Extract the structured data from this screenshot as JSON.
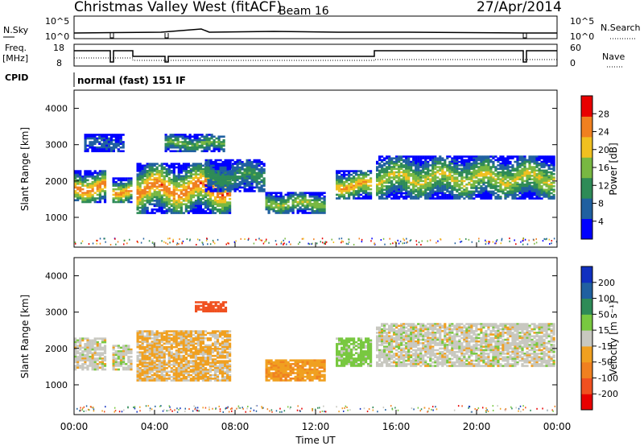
{
  "header": {
    "title": "Christmas Valley West (fitACF)",
    "beam": "Beam 16",
    "date": "27/Apr/2014",
    "cpid_label": "CPID",
    "cpid_value": "normal (fast) 151 IF"
  },
  "strips": {
    "nsky": {
      "label": "N.Sky",
      "right_label": "N.Search",
      "ticks": [
        "10^5",
        "10^0"
      ]
    },
    "freq": {
      "label_line1": "Freq.",
      "label_line2": "[MHz]",
      "left_ticks": [
        "18",
        "8"
      ],
      "right_label": "Nave",
      "right_ticks": [
        "60",
        "0"
      ]
    }
  },
  "chart_data": [
    {
      "type": "heatmap",
      "title": "",
      "ylabel": "Slant Range [km]",
      "yticks": [
        "4000",
        "3000",
        "2000",
        "1000"
      ],
      "ylim": [
        180,
        4500
      ],
      "xlim_hours": [
        0,
        24
      ],
      "colorbar": {
        "label": "Power [dB]",
        "ticks": [
          "28",
          "24",
          "20",
          "16",
          "12",
          "8",
          "4"
        ],
        "colors": [
          "#0000ff",
          "#2060a0",
          "#2e8b57",
          "#78b842",
          "#f0c020",
          "#f08020",
          "#e80000"
        ]
      },
      "echo_regions": [
        {
          "x": [
            0.0,
            1.6
          ],
          "y": [
            1400,
            2300
          ],
          "peak": 0.9
        },
        {
          "x": [
            1.9,
            2.9
          ],
          "y": [
            1400,
            2100
          ],
          "peak": 0.85
        },
        {
          "x": [
            3.1,
            7.8
          ],
          "y": [
            1100,
            2500
          ],
          "peak": 0.9
        },
        {
          "x": [
            0.5,
            2.5
          ],
          "y": [
            2800,
            3300
          ],
          "peak": 0.2
        },
        {
          "x": [
            4.5,
            7.5
          ],
          "y": [
            2800,
            3300
          ],
          "peak": 0.5
        },
        {
          "x": [
            6.5,
            9.5
          ],
          "y": [
            1700,
            2600
          ],
          "peak": 0.4
        },
        {
          "x": [
            9.5,
            12.5
          ],
          "y": [
            1100,
            1700
          ],
          "peak": 0.6
        },
        {
          "x": [
            13.0,
            14.8
          ],
          "y": [
            1500,
            2300
          ],
          "peak": 0.8
        },
        {
          "x": [
            15.0,
            23.9
          ],
          "y": [
            1500,
            2700
          ],
          "peak": 0.65
        }
      ]
    },
    {
      "type": "heatmap",
      "title": "",
      "ylabel": "Slant Range [km]",
      "yticks": [
        "4000",
        "3000",
        "2000",
        "1000"
      ],
      "ylim": [
        180,
        4500
      ],
      "xlim_hours": [
        0,
        24
      ],
      "xticks": [
        "00:00",
        "04:00",
        "08:00",
        "12:00",
        "16:00",
        "20:00",
        "00:00"
      ],
      "xlabel": "Time UT",
      "colorbar": {
        "label": "Velocity [m s⁻¹]",
        "ticks": [
          "200",
          "100",
          "50",
          "15",
          "-15",
          "-50",
          "-100",
          "-200"
        ],
        "colors": [
          "#e80000",
          "#f05020",
          "#f08020",
          "#f0a020",
          "#c8c8c0",
          "#78c840",
          "#2e8b57",
          "#2060a0",
          "#1030c0"
        ]
      },
      "echo_regions": [
        {
          "x": [
            0.0,
            1.6
          ],
          "y": [
            1400,
            2300
          ],
          "velocity": 0
        },
        {
          "x": [
            1.9,
            2.9
          ],
          "y": [
            1400,
            2100
          ],
          "velocity": 0
        },
        {
          "x": [
            3.1,
            7.8
          ],
          "y": [
            1100,
            2500
          ],
          "velocity": -20
        },
        {
          "x": [
            6.0,
            7.6
          ],
          "y": [
            3000,
            3300
          ],
          "velocity": -150
        },
        {
          "x": [
            9.5,
            12.5
          ],
          "y": [
            1100,
            1700
          ],
          "velocity": -40
        },
        {
          "x": [
            13.0,
            14.8
          ],
          "y": [
            1500,
            2300
          ],
          "velocity": 30
        },
        {
          "x": [
            15.0,
            23.9
          ],
          "y": [
            1500,
            2700
          ],
          "velocity": 0
        }
      ]
    }
  ]
}
